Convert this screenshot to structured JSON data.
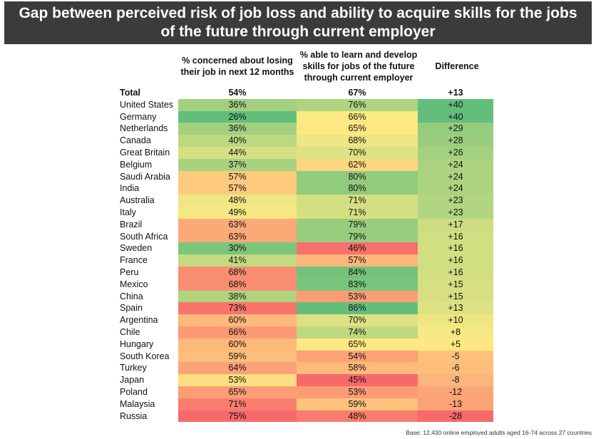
{
  "header": {
    "title_line1": "Gap between perceived risk of job loss and ability to acquire skills for the jobs",
    "title_line2": "of the future through current employer"
  },
  "columns": {
    "concerned": "% concerned about losing their job in next 12 months",
    "able": "% able to learn and develop skills for jobs of the future through current employer",
    "difference": "Difference"
  },
  "footnote": "Base: 12,430 online employed adults aged 16-74 across 27 countries",
  "colors": {
    "green": "#63be7b",
    "yellow": "#ffeb84",
    "red": "#f8696b"
  },
  "chart_data": {
    "type": "table",
    "title": "Gap between perceived risk of job loss and ability to acquire skills for the jobs of the future through current employer",
    "columns": [
      "% concerned about losing their job in next 12 months",
      "% able to learn and develop skills for jobs of the future through current employer",
      "Difference"
    ],
    "total": {
      "label": "Total",
      "concerned": "54%",
      "able": "67%",
      "difference": "+13"
    },
    "rows": [
      {
        "country": "United States",
        "concerned": 36,
        "able": 76,
        "difference": 40
      },
      {
        "country": "Germany",
        "concerned": 26,
        "able": 66,
        "difference": 40
      },
      {
        "country": "Netherlands",
        "concerned": 36,
        "able": 65,
        "difference": 29
      },
      {
        "country": "Canada",
        "concerned": 40,
        "able": 68,
        "difference": 28
      },
      {
        "country": "Great Britain",
        "concerned": 44,
        "able": 70,
        "difference": 26
      },
      {
        "country": "Belgium",
        "concerned": 37,
        "able": 62,
        "difference": 24
      },
      {
        "country": "Saudi Arabia",
        "concerned": 57,
        "able": 80,
        "difference": 24
      },
      {
        "country": "India",
        "concerned": 57,
        "able": 80,
        "difference": 24
      },
      {
        "country": "Australia",
        "concerned": 48,
        "able": 71,
        "difference": 23
      },
      {
        "country": "Italy",
        "concerned": 49,
        "able": 71,
        "difference": 23
      },
      {
        "country": "Brazil",
        "concerned": 63,
        "able": 79,
        "difference": 17
      },
      {
        "country": "South Africa",
        "concerned": 63,
        "able": 79,
        "difference": 16
      },
      {
        "country": "Sweden",
        "concerned": 30,
        "able": 46,
        "difference": 16
      },
      {
        "country": "France",
        "concerned": 41,
        "able": 57,
        "difference": 16
      },
      {
        "country": "Peru",
        "concerned": 68,
        "able": 84,
        "difference": 16
      },
      {
        "country": "Mexico",
        "concerned": 68,
        "able": 83,
        "difference": 15
      },
      {
        "country": "China",
        "concerned": 38,
        "able": 53,
        "difference": 15
      },
      {
        "country": "Spain",
        "concerned": 73,
        "able": 86,
        "difference": 13
      },
      {
        "country": "Argentina",
        "concerned": 60,
        "able": 70,
        "difference": 10
      },
      {
        "country": "Chile",
        "concerned": 66,
        "able": 74,
        "difference": 8
      },
      {
        "country": "Hungary",
        "concerned": 60,
        "able": 65,
        "difference": 5
      },
      {
        "country": "South Korea",
        "concerned": 59,
        "able": 54,
        "difference": -5
      },
      {
        "country": "Turkey",
        "concerned": 64,
        "able": 58,
        "difference": -6
      },
      {
        "country": "Japan",
        "concerned": 53,
        "able": 45,
        "difference": -8
      },
      {
        "country": "Poland",
        "concerned": 65,
        "able": 53,
        "difference": -12
      },
      {
        "country": "Malaysia",
        "concerned": 71,
        "able": 59,
        "difference": -13
      },
      {
        "country": "Russia",
        "concerned": 75,
        "able": 48,
        "difference": -28
      }
    ]
  }
}
